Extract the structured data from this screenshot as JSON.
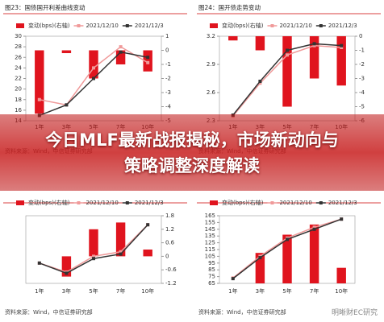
{
  "chart_data": [
    {
      "type": "combo",
      "title": "图23：国债国开利差曲线变动",
      "categories": [
        "1年",
        "3年",
        "5年",
        "7年",
        "10年"
      ],
      "ylim": [
        14,
        30
      ],
      "yticks": [
        14,
        16,
        18,
        20,
        22,
        24,
        26,
        28,
        30
      ],
      "y2lim": [
        -5,
        1
      ],
      "y2ticks": [
        -5,
        -4,
        -3,
        -2,
        -1,
        0,
        1
      ],
      "series": [
        {
          "name": "变动(bps)(右轴)",
          "type": "bar",
          "axis": "y2",
          "color": "#e0141e",
          "values": [
            -4.5,
            -0.2,
            -2,
            -1,
            -1.5
          ]
        },
        {
          "name": "2021/12/10",
          "type": "line",
          "color": "#f09a9a",
          "values": [
            18,
            17,
            24,
            28,
            25
          ]
        },
        {
          "name": "2021/12/3",
          "type": "line",
          "color": "#333333",
          "values": [
            15,
            17,
            22,
            27,
            26
          ]
        }
      ],
      "source": "资料来源：Wind，中信证券研究部"
    },
    {
      "type": "combo",
      "title": "图24：国开债走势变动",
      "categories": [
        "1年",
        "3年",
        "5年",
        "7年",
        "10年"
      ],
      "ylim": [
        2.3,
        3.2
      ],
      "yticks": [
        2.3,
        2.6,
        2.9,
        3.2
      ],
      "y2lim": [
        -6,
        0
      ],
      "y2ticks": [
        -6,
        -5,
        -4,
        -3,
        -2,
        -1,
        0
      ],
      "series": [
        {
          "name": "变动(bps)(右轴)",
          "type": "bar",
          "axis": "y2",
          "color": "#e0141e",
          "values": [
            -0.3,
            -1,
            -5,
            -3,
            -3.5
          ]
        },
        {
          "name": "2021/12/10",
          "type": "line",
          "color": "#f09a9a",
          "values": [
            2.35,
            2.7,
            3.0,
            3.1,
            3.08
          ]
        },
        {
          "name": "2021/12/3",
          "type": "line",
          "color": "#333333",
          "values": [
            2.36,
            2.72,
            3.05,
            3.12,
            3.1
          ]
        }
      ],
      "source": "资料来源：Wind，中信证券研究部"
    },
    {
      "type": "combo",
      "categories": [
        "1年",
        "3年",
        "5年",
        "7年",
        "10年"
      ],
      "y2lim": [
        -1.2,
        1.8
      ],
      "y2ticks": [
        -1.2,
        -0.6,
        0,
        0.6,
        1.2,
        1.8
      ],
      "series": [
        {
          "name": "变动(bps)(右轴)",
          "type": "bar",
          "axis": "y2",
          "color": "#e0141e",
          "values": [
            null,
            -0.9,
            1.2,
            1.5,
            0.3
          ]
        },
        {
          "name": "2021/12/10",
          "type": "line",
          "axis": "y2",
          "color": "#f09a9a",
          "values": [
            -0.3,
            -0.7,
            0,
            0.2,
            1.4
          ]
        },
        {
          "name": "2021/12/3",
          "type": "line",
          "axis": "y2",
          "color": "#333333",
          "values": [
            -0.3,
            -0.75,
            -0.1,
            0.1,
            1.4
          ]
        }
      ],
      "source": "资料来源：Wind，中信证券研究部"
    },
    {
      "type": "combo",
      "categories": [
        "1年",
        "3年",
        "5年",
        "7年",
        "10年"
      ],
      "ylim": [
        65,
        165
      ],
      "yticks": [
        65,
        75,
        85,
        95,
        105,
        115,
        125,
        135,
        145,
        155,
        165
      ],
      "series": [
        {
          "name": "变动(bps)(右轴)",
          "type": "bar",
          "color": "#e0141e",
          "values": [
            null,
            110,
            137,
            152,
            88
          ]
        },
        {
          "name": "2021/12/10",
          "type": "line",
          "color": "#f09a9a",
          "values": [
            73,
            105,
            132,
            148,
            160
          ]
        },
        {
          "name": "2021/12/3",
          "type": "line",
          "color": "#333333",
          "values": [
            72,
            103,
            130,
            145,
            160
          ]
        }
      ],
      "source": "资料来源：Wind，中信证券研究部"
    }
  ],
  "banner": {
    "title": "今日MLF最新战报揭秘，市场新动向与策略调整深度解读"
  },
  "watermark": "明晰财EC研究"
}
